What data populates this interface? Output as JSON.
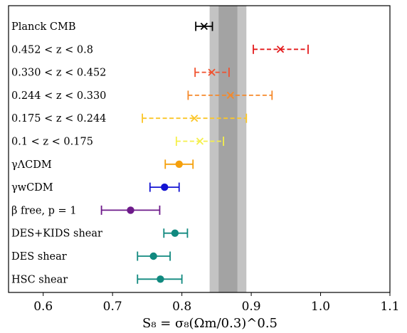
{
  "chart_data": {
    "type": "errorbar",
    "title": "",
    "xlabel": "S₈ = σ₈(Ωm/0.3)^0.5",
    "ylabel": "",
    "xlim": [
      0.55,
      1.1
    ],
    "xticks": [
      "0.6",
      "0.7",
      "0.8",
      "0.9",
      "1.0",
      "1.1"
    ],
    "xtick_values": [
      0.6,
      0.7,
      0.8,
      0.9,
      1.0,
      1.1
    ],
    "grid": false,
    "bands": [
      {
        "from": 0.84,
        "to": 0.893,
        "color": "#c3c3c3"
      },
      {
        "from": 0.853,
        "to": 0.88,
        "color": "#a3a3a3"
      }
    ],
    "rows": [
      {
        "label": "Planck CMB",
        "value": 0.832,
        "low": 0.82,
        "high": 0.844,
        "marker": "x",
        "dashed": false,
        "color": "#000000"
      },
      {
        "label": "0.452 < z < 0.8",
        "value": 0.942,
        "low": 0.903,
        "high": 0.982,
        "marker": "x",
        "dashed": true,
        "color": "#e31a1c"
      },
      {
        "label": "0.330 < z < 0.452",
        "value": 0.843,
        "low": 0.819,
        "high": 0.868,
        "marker": "x",
        "dashed": true,
        "color": "#f0512e"
      },
      {
        "label": "0.244 < z < 0.330",
        "value": 0.87,
        "low": 0.809,
        "high": 0.93,
        "marker": "x",
        "dashed": true,
        "color": "#f5892a"
      },
      {
        "label": "0.175 < z < 0.244",
        "value": 0.818,
        "low": 0.743,
        "high": 0.893,
        "marker": "x",
        "dashed": true,
        "color": "#fbc628"
      },
      {
        "label": "0.1 < z < 0.175",
        "value": 0.826,
        "low": 0.792,
        "high": 0.86,
        "marker": "x",
        "dashed": true,
        "color": "#f5f04a"
      },
      {
        "label": "γΛCDM",
        "value": 0.796,
        "low": 0.776,
        "high": 0.816,
        "marker": "o",
        "dashed": false,
        "color": "#f5a00c"
      },
      {
        "label": "γwCDM",
        "value": 0.775,
        "low": 0.754,
        "high": 0.796,
        "marker": "o",
        "dashed": false,
        "color": "#1414d2"
      },
      {
        "label": "β free, p = 1",
        "value": 0.726,
        "low": 0.684,
        "high": 0.768,
        "marker": "o",
        "dashed": false,
        "color": "#6d1a8a"
      },
      {
        "label": "DES+KIDS shear",
        "value": 0.79,
        "low": 0.774,
        "high": 0.808,
        "marker": "o",
        "dashed": false,
        "color": "#10897f"
      },
      {
        "label": "DES shear",
        "value": 0.759,
        "low": 0.736,
        "high": 0.783,
        "marker": "o",
        "dashed": false,
        "color": "#10897f"
      },
      {
        "label": "HSC shear",
        "value": 0.769,
        "low": 0.736,
        "high": 0.8,
        "marker": "o",
        "dashed": false,
        "color": "#10897f"
      }
    ]
  }
}
